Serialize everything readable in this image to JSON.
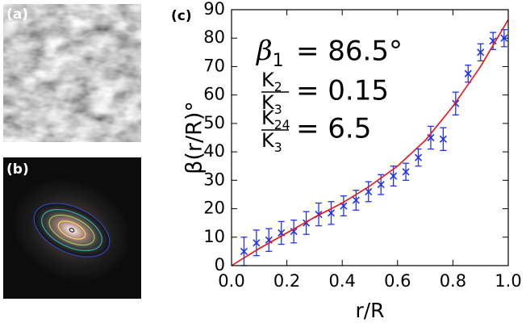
{
  "panels": [
    "(a)",
    "(b)"
  ],
  "chart_data": {
    "type": "scatter",
    "panel_label": "(c)",
    "x_label": "r/R",
    "y_label": "β(r/R)°",
    "xlim": [
      0,
      1
    ],
    "ylim": [
      0,
      90
    ],
    "xticks": [
      {
        "value": 0,
        "label": "0.0"
      },
      0.2,
      0.4,
      0.6,
      0.8,
      {
        "value": 1,
        "label": "1.0"
      }
    ],
    "yticks": [
      0,
      10,
      20,
      30,
      40,
      50,
      60,
      70,
      80,
      90
    ],
    "annotations": [
      {
        "symbol": "β",
        "sub": "1",
        "text": "= 86.5°"
      },
      {
        "numerator": "K",
        "numerator_sub": "2",
        "denominator": "K",
        "denominator_sub": "3",
        "text": "= 0.15"
      },
      {
        "numerator": "K",
        "numerator_sub": "24",
        "denominator": "K",
        "denominator_sub": "3",
        "text": "= 6.5"
      }
    ],
    "series": [
      {
        "kind": "points",
        "color": "#2233ee",
        "x": [
          0.045,
          0.09,
          0.135,
          0.18,
          0.225,
          0.27,
          0.315,
          0.36,
          0.405,
          0.45,
          0.495,
          0.54,
          0.585,
          0.63,
          0.675,
          0.72,
          0.765,
          0.81,
          0.855,
          0.9,
          0.945,
          0.985
        ],
        "values": [
          5,
          8,
          9,
          11.5,
          12,
          15,
          18,
          18.5,
          21,
          23,
          26,
          28.5,
          31.5,
          33,
          38,
          45,
          44.5,
          57,
          67.5,
          75,
          79,
          80
        ],
        "errors": [
          5,
          4.5,
          4,
          4,
          4,
          4,
          4,
          4,
          3.5,
          3.5,
          3.5,
          3.5,
          3.5,
          3,
          3,
          4,
          4,
          4,
          3,
          3,
          3,
          3
        ]
      },
      {
        "kind": "line",
        "color": "#ee1111",
        "x": [
          0,
          0.1,
          0.2,
          0.3,
          0.4,
          0.5,
          0.6,
          0.7,
          0.8,
          0.9,
          1
        ],
        "values": [
          0,
          6,
          11.5,
          17,
          22,
          28,
          35,
          44,
          56,
          70,
          86.5
        ]
      }
    ]
  }
}
